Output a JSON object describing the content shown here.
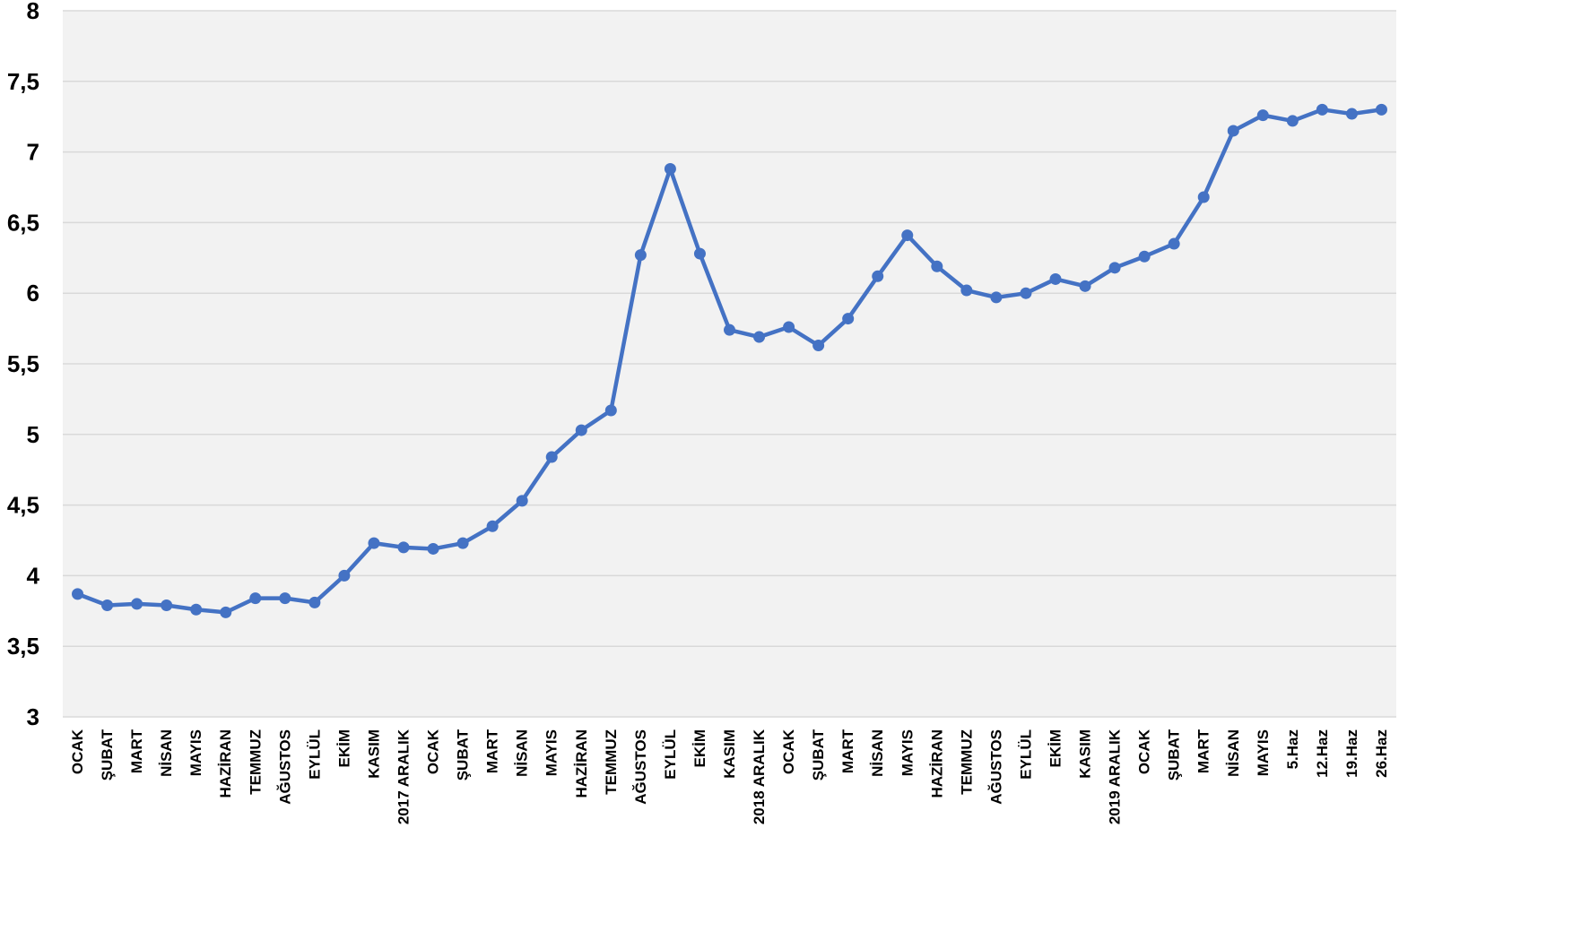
{
  "chart_data": {
    "type": "line",
    "title": "",
    "xlabel": "",
    "ylabel": "",
    "ylim": [
      3,
      8
    ],
    "yticks": [
      "3",
      "3,5",
      "4",
      "4,5",
      "5",
      "5,5",
      "6",
      "6,5",
      "7",
      "7,5",
      "8"
    ],
    "grid": true,
    "legend": "none",
    "colors": {
      "line": "#4472C4",
      "plot_bg": "#F2F2F2",
      "grid": "#D9D9D9"
    },
    "categories": [
      "OCAK",
      "ŞUBAT",
      "MART",
      "NİSAN",
      "MAYIS",
      "HAZİRAN",
      "TEMMUZ",
      "AĞUSTOS",
      "EYLÜL",
      "EKİM",
      "KASIM",
      "2017 ARALIK",
      "OCAK",
      "ŞUBAT",
      "MART",
      "NİSAN",
      "MAYIS",
      "HAZİRAN",
      "TEMMUZ",
      "AĞUSTOS",
      "EYLÜL",
      "EKİM",
      "KASIM",
      "2018 ARALIK",
      "OCAK",
      "ŞUBAT",
      "MART",
      "NİSAN",
      "MAYIS",
      "HAZİRAN",
      "TEMMUZ",
      "AĞUSTOS",
      "EYLÜL",
      "EKİM",
      "KASIM",
      "2019 ARALIK",
      "OCAK",
      "ŞUBAT",
      "MART",
      "NİSAN",
      "MAYIS",
      "5.Haz",
      "12.Haz",
      "19.Haz",
      "26.Haz"
    ],
    "series": [
      {
        "values": [
          3.87,
          3.79,
          3.8,
          3.79,
          3.76,
          3.74,
          3.84,
          3.84,
          3.81,
          4.0,
          4.23,
          4.2,
          4.19,
          4.23,
          4.35,
          4.53,
          4.84,
          5.03,
          5.17,
          6.27,
          6.88,
          6.28,
          5.74,
          5.69,
          5.76,
          5.63,
          5.82,
          6.12,
          6.41,
          6.19,
          6.02,
          5.97,
          6.0,
          6.1,
          6.05,
          6.18,
          6.26,
          6.35,
          6.68,
          7.15,
          7.26,
          7.22,
          7.3,
          7.27,
          7.3
        ]
      }
    ]
  }
}
